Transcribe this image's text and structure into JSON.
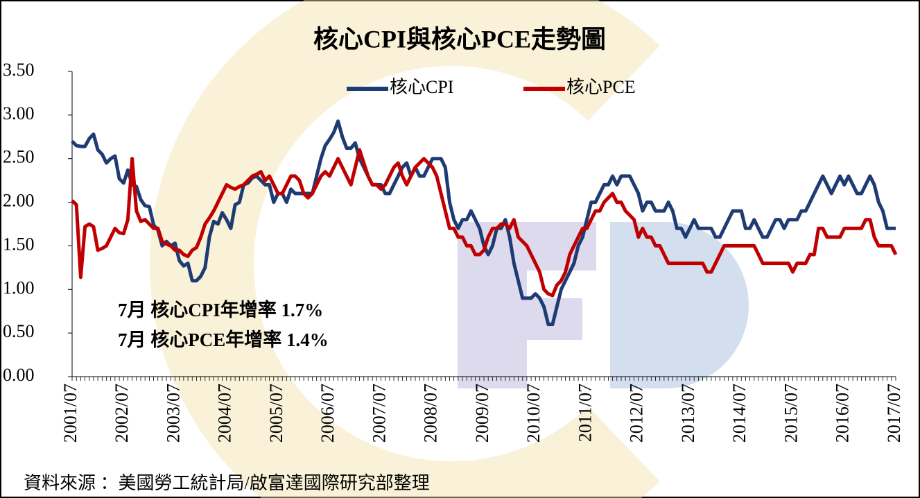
{
  "chart_data": {
    "type": "line",
    "title": "核心CPI與核心PCE走勢圖",
    "source": "資料來源 ：美國勞工統計局/啟富達國際研究部整理",
    "annotations": [
      {
        "text": "7月 核心CPI年增率 1.7%",
        "color": "#1f3b73"
      },
      {
        "text": "7月 核心PCE年增率 1.4%",
        "color": "#c00000"
      }
    ],
    "categories": [
      "2001/07",
      null,
      null,
      null,
      null,
      null,
      null,
      null,
      null,
      null,
      null,
      null,
      "2002/07",
      null,
      null,
      null,
      null,
      null,
      null,
      null,
      null,
      null,
      null,
      null,
      "2003/07",
      null,
      null,
      null,
      null,
      null,
      null,
      null,
      null,
      null,
      null,
      null,
      "2004/07",
      null,
      null,
      null,
      null,
      null,
      null,
      null,
      null,
      null,
      null,
      null,
      "2005/07",
      null,
      null,
      null,
      null,
      null,
      null,
      null,
      null,
      null,
      null,
      null,
      "2006/07",
      null,
      null,
      null,
      null,
      null,
      null,
      null,
      null,
      null,
      null,
      null,
      "2007/07",
      null,
      null,
      null,
      null,
      null,
      null,
      null,
      null,
      null,
      null,
      null,
      "2008/07",
      null,
      null,
      null,
      null,
      null,
      null,
      null,
      null,
      null,
      null,
      null,
      "2009/07",
      null,
      null,
      null,
      null,
      null,
      null,
      null,
      null,
      null,
      null,
      null,
      "2010/07",
      null,
      null,
      null,
      null,
      null,
      null,
      null,
      null,
      null,
      null,
      null,
      "2011/07",
      null,
      null,
      null,
      null,
      null,
      null,
      null,
      null,
      null,
      null,
      null,
      "2012/07",
      null,
      null,
      null,
      null,
      null,
      null,
      null,
      null,
      null,
      null,
      null,
      "2013/07",
      null,
      null,
      null,
      null,
      null,
      null,
      null,
      null,
      null,
      null,
      null,
      "2014/07",
      null,
      null,
      null,
      null,
      null,
      null,
      null,
      null,
      null,
      null,
      null,
      "2015/07",
      null,
      null,
      null,
      null,
      null,
      null,
      null,
      null,
      null,
      null,
      null,
      "2016/07",
      null,
      null,
      null,
      null,
      null,
      null,
      null,
      null,
      null,
      null,
      null,
      "2017/07"
    ],
    "series": [
      {
        "name": "核心CPI",
        "color": "#1f3b73",
        "values": [
          2.7,
          2.65,
          2.64,
          2.64,
          2.73,
          2.78,
          2.6,
          2.55,
          2.45,
          2.5,
          2.53,
          2.27,
          2.22,
          2.37,
          2.2,
          2.18,
          2.03,
          1.96,
          1.95,
          1.74,
          1.68,
          1.5,
          1.55,
          1.5,
          1.53,
          1.33,
          1.27,
          1.3,
          1.1,
          1.1,
          1.15,
          1.25,
          1.6,
          1.78,
          1.75,
          1.88,
          1.8,
          1.7,
          1.97,
          2.0,
          2.2,
          2.22,
          2.28,
          2.3,
          2.25,
          2.2,
          2.2,
          2.0,
          2.1,
          2.1,
          2.0,
          2.15,
          2.1,
          2.1,
          2.1,
          2.1,
          2.1,
          2.3,
          2.5,
          2.65,
          2.72,
          2.8,
          2.93,
          2.75,
          2.62,
          2.62,
          2.68,
          2.5,
          2.4,
          2.3,
          2.2,
          2.2,
          2.2,
          2.1,
          2.1,
          2.2,
          2.3,
          2.4,
          2.45,
          2.3,
          2.4,
          2.3,
          2.3,
          2.4,
          2.5,
          2.5,
          2.5,
          2.4,
          2.0,
          1.8,
          1.7,
          1.8,
          1.8,
          1.9,
          1.8,
          1.7,
          1.5,
          1.4,
          1.5,
          1.7,
          1.7,
          1.8,
          1.6,
          1.3,
          1.1,
          0.9,
          0.9,
          0.9,
          0.95,
          0.9,
          0.8,
          0.6,
          0.6,
          0.8,
          1.0,
          1.1,
          1.2,
          1.3,
          1.5,
          1.6,
          1.8,
          2.0,
          2.0,
          2.1,
          2.2,
          2.2,
          2.3,
          2.2,
          2.3,
          2.3,
          2.3,
          2.2,
          2.1,
          1.9,
          2.0,
          2.0,
          1.9,
          1.9,
          1.9,
          2.0,
          1.9,
          1.7,
          1.7,
          1.6,
          1.7,
          1.8,
          1.7,
          1.7,
          1.7,
          1.7,
          1.6,
          1.6,
          1.7,
          1.8,
          1.9,
          1.9,
          1.9,
          1.7,
          1.7,
          1.8,
          1.7,
          1.6,
          1.6,
          1.7,
          1.8,
          1.8,
          1.7,
          1.8,
          1.8,
          1.8,
          1.9,
          1.9,
          2.0,
          2.1,
          2.2,
          2.3,
          2.2,
          2.1,
          2.2,
          2.3,
          2.2,
          2.3,
          2.2,
          2.1,
          2.1,
          2.2,
          2.3,
          2.2,
          2.0,
          1.9,
          1.7,
          1.7,
          1.7
        ]
      },
      {
        "name": "核心PCE",
        "color": "#c00000",
        "values": [
          2.02,
          1.97,
          1.14,
          1.72,
          1.75,
          1.72,
          1.45,
          1.47,
          1.5,
          1.6,
          1.7,
          1.65,
          1.64,
          1.8,
          2.5,
          1.9,
          1.78,
          1.8,
          1.75,
          1.7,
          1.7,
          1.55,
          1.52,
          1.5,
          1.45,
          1.45,
          1.4,
          1.38,
          1.45,
          1.48,
          1.6,
          1.75,
          1.82,
          1.9,
          2.0,
          2.1,
          2.2,
          2.17,
          2.15,
          2.18,
          2.2,
          2.25,
          2.3,
          2.32,
          2.35,
          2.25,
          2.3,
          2.2,
          2.1,
          2.1,
          2.2,
          2.3,
          2.3,
          2.25,
          2.1,
          2.05,
          2.1,
          2.2,
          2.3,
          2.35,
          2.3,
          2.4,
          2.5,
          2.4,
          2.3,
          2.2,
          2.4,
          2.6,
          2.45,
          2.3,
          2.2,
          2.2,
          2.15,
          2.2,
          2.3,
          2.4,
          2.45,
          2.3,
          2.2,
          2.3,
          2.4,
          2.45,
          2.5,
          2.45,
          2.4,
          2.3,
          2.1,
          1.9,
          1.7,
          1.7,
          1.6,
          1.6,
          1.5,
          1.5,
          1.4,
          1.4,
          1.45,
          1.6,
          1.7,
          1.7,
          1.75,
          1.75,
          1.7,
          1.8,
          1.6,
          1.55,
          1.5,
          1.4,
          1.3,
          1.2,
          1.0,
          0.95,
          0.93,
          1.05,
          1.1,
          1.2,
          1.4,
          1.5,
          1.6,
          1.7,
          1.7,
          1.8,
          1.9,
          1.9,
          2.0,
          2.05,
          2.1,
          2.0,
          2.0,
          1.9,
          1.85,
          1.8,
          1.6,
          1.7,
          1.6,
          1.6,
          1.5,
          1.5,
          1.4,
          1.3,
          1.3,
          1.3,
          1.3,
          1.3,
          1.3,
          1.3,
          1.3,
          1.3,
          1.2,
          1.2,
          1.3,
          1.4,
          1.5,
          1.5,
          1.5,
          1.5,
          1.5,
          1.5,
          1.5,
          1.5,
          1.4,
          1.3,
          1.3,
          1.3,
          1.3,
          1.3,
          1.3,
          1.3,
          1.2,
          1.3,
          1.3,
          1.3,
          1.4,
          1.4,
          1.7,
          1.7,
          1.6,
          1.6,
          1.6,
          1.6,
          1.7,
          1.7,
          1.7,
          1.7,
          1.7,
          1.8,
          1.8,
          1.6,
          1.5,
          1.5,
          1.5,
          1.5,
          1.4
        ]
      }
    ],
    "ylim": [
      0,
      3.5
    ],
    "yticks": [
      {
        "value": 0,
        "label": "0.00"
      },
      {
        "value": 0.5,
        "label": "0.50"
      },
      {
        "value": 1,
        "label": "1.00"
      },
      {
        "value": 1.5,
        "label": "1.50"
      },
      {
        "value": 2,
        "label": "2.00"
      },
      {
        "value": 2.5,
        "label": "2.50"
      },
      {
        "value": 3,
        "label": "3.00"
      },
      {
        "value": 3.5,
        "label": "3.50"
      }
    ],
    "legend": "top",
    "grid": false
  }
}
